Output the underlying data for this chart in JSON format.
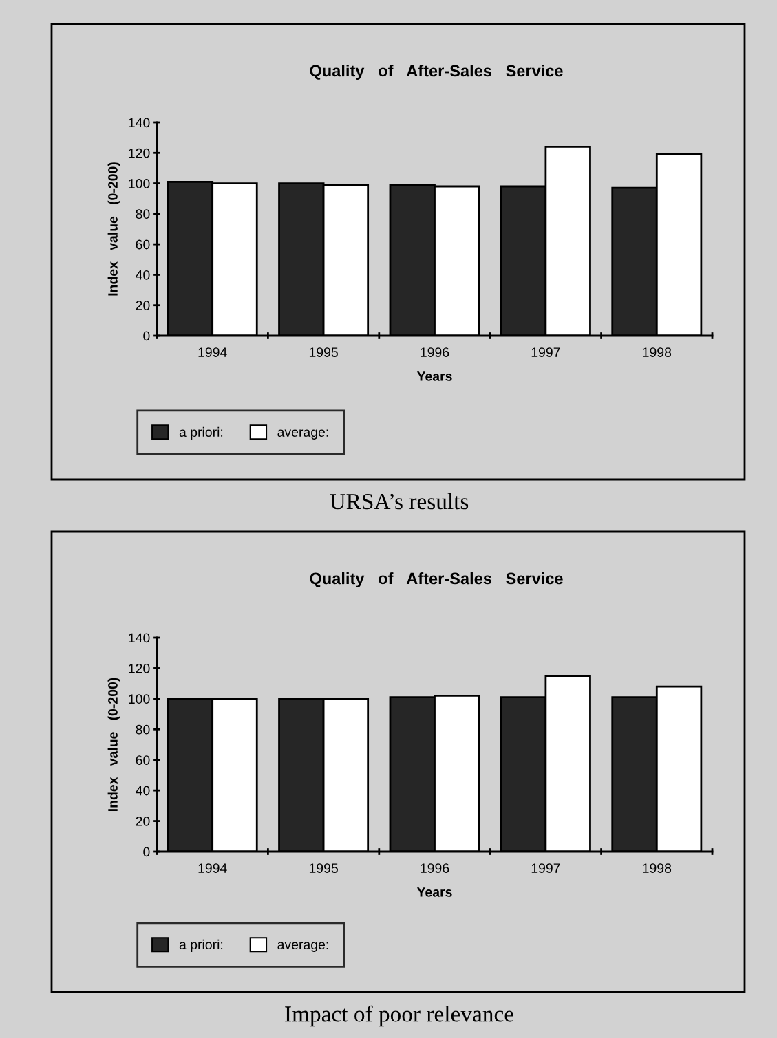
{
  "chart_data": [
    {
      "type": "bar",
      "title": "Quality   of   After-Sales   Service",
      "xlabel": "Years",
      "ylabel": "Index   value   (0-200)",
      "categories": [
        "1994",
        "1995",
        "1996",
        "1997",
        "1998"
      ],
      "series": [
        {
          "name": "a priori:",
          "color": "#262626",
          "values": [
            101,
            100,
            99,
            98,
            97
          ]
        },
        {
          "name": "average:",
          "color": "#ffffff",
          "values": [
            100,
            99,
            98,
            124,
            119
          ]
        }
      ],
      "ylim": [
        0,
        140
      ],
      "yticks": [
        0,
        20,
        40,
        60,
        80,
        100,
        120,
        140
      ],
      "grid": false,
      "legend": "bottom",
      "annotations": [
        "URSA’s results"
      ]
    },
    {
      "type": "bar",
      "title": "Quality   of   After-Sales   Service",
      "xlabel": "Years",
      "ylabel": "Index   value   (0-200)",
      "categories": [
        "1994",
        "1995",
        "1996",
        "1997",
        "1998"
      ],
      "series": [
        {
          "name": "a priori:",
          "color": "#262626",
          "values": [
            100,
            100,
            101,
            101,
            101
          ]
        },
        {
          "name": "average:",
          "color": "#ffffff",
          "values": [
            100,
            100,
            102,
            115,
            108
          ]
        }
      ],
      "ylim": [
        0,
        140
      ],
      "yticks": [
        0,
        20,
        40,
        60,
        80,
        100,
        120,
        140
      ],
      "grid": false,
      "legend": "bottom",
      "annotations": [
        "Impact of poor relevance"
      ]
    }
  ]
}
